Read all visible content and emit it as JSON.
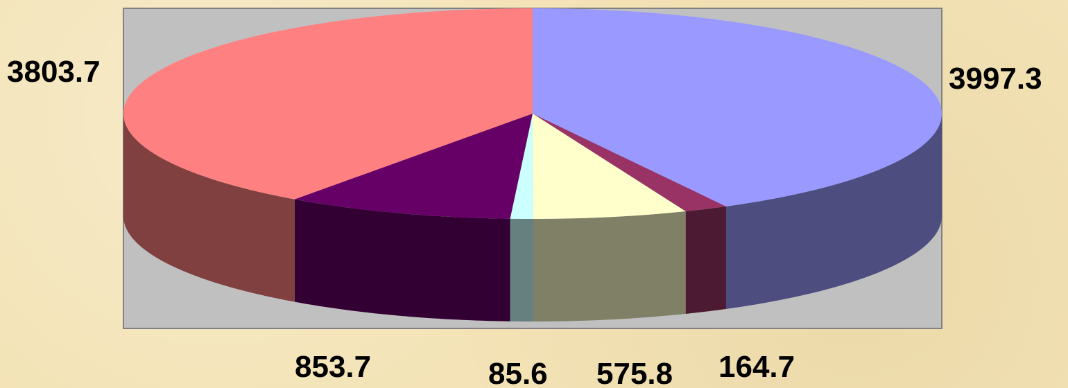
{
  "chart_data": {
    "type": "pie",
    "style": "3d",
    "title": "",
    "start_angle_deg": -90,
    "clockwise": true,
    "slices": [
      {
        "value": 3997.3,
        "label": "3997.3",
        "color": "#9999ff",
        "side_color": "#4d4d80"
      },
      {
        "value": 164.7,
        "label": "164.7",
        "color": "#993366",
        "side_color": "#4d1a33"
      },
      {
        "value": 575.8,
        "label": "575.8",
        "color": "#ffffcc",
        "side_color": "#808066"
      },
      {
        "value": 85.6,
        "label": "85.6",
        "color": "#ccffff",
        "side_color": "#668080"
      },
      {
        "value": 853.7,
        "label": "853.7",
        "color": "#660066",
        "side_color": "#330033"
      },
      {
        "value": 3803.7,
        "label": "3803.7",
        "color": "#ff8080",
        "side_color": "#804040"
      }
    ],
    "plot_area_color": "#c0c0c0",
    "plot_area_border": "#808080"
  }
}
